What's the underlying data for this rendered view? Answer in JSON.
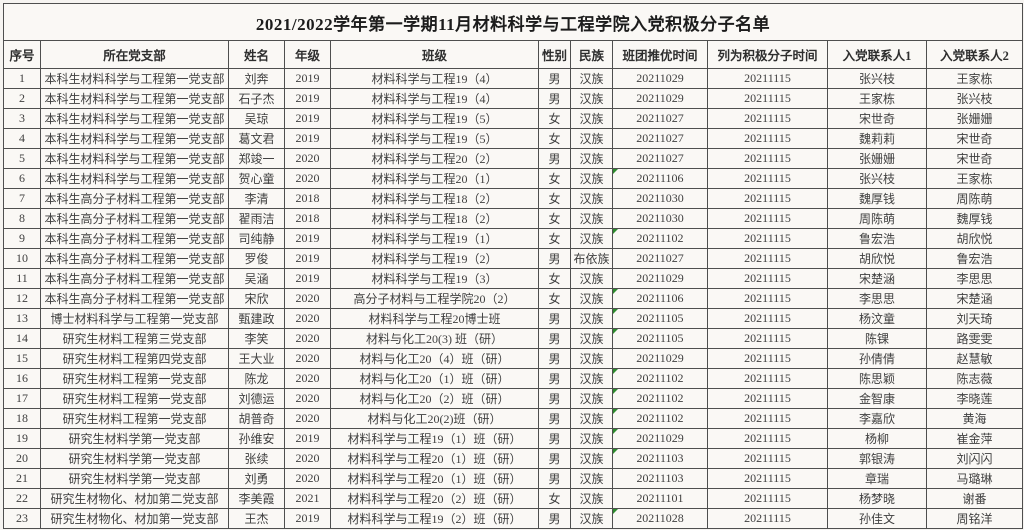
{
  "title": "2021/2022学年第一学期11月材料科学与工程学院入党积极分子名单",
  "columns": [
    "序号",
    "所在党支部",
    "姓名",
    "年级",
    "班级",
    "性别",
    "民族",
    "班团推优时间",
    "列为积极分子时间",
    "入党联系人1",
    "入党联系人2"
  ],
  "colors": {
    "flag_triangle": "#2e8b2e",
    "grid_line": "#4f4f4f",
    "paper": "#faf8f5"
  },
  "rows": [
    {
      "no": "1",
      "branch": "本科生材料科学与工程第一党支部",
      "name": "刘奔",
      "grade": "2019",
      "class": "材料科学与工程19（4）",
      "gender": "男",
      "ethnicity": "汉族",
      "rec_time": "20211029",
      "listed_time": "20211115",
      "contact1": "张兴枝",
      "contact2": "王家栋",
      "flag": false
    },
    {
      "no": "2",
      "branch": "本科生材料科学与工程第一党支部",
      "name": "石子杰",
      "grade": "2019",
      "class": "材料科学与工程19（4）",
      "gender": "男",
      "ethnicity": "汉族",
      "rec_time": "20211029",
      "listed_time": "20211115",
      "contact1": "王家栋",
      "contact2": "张兴枝",
      "flag": false
    },
    {
      "no": "3",
      "branch": "本科生材料科学与工程第一党支部",
      "name": "吴琼",
      "grade": "2019",
      "class": "材料科学与工程19（5）",
      "gender": "女",
      "ethnicity": "汉族",
      "rec_time": "20211027",
      "listed_time": "20211115",
      "contact1": "宋世奇",
      "contact2": "张姗姗",
      "flag": false
    },
    {
      "no": "4",
      "branch": "本科生材料科学与工程第一党支部",
      "name": "葛文君",
      "grade": "2019",
      "class": "材料科学与工程19（5）",
      "gender": "女",
      "ethnicity": "汉族",
      "rec_time": "20211027",
      "listed_time": "20211115",
      "contact1": "魏莉莉",
      "contact2": "宋世奇",
      "flag": false
    },
    {
      "no": "5",
      "branch": "本科生材料科学与工程第一党支部",
      "name": "郑竣一",
      "grade": "2020",
      "class": "材料科学与工程20（2）",
      "gender": "男",
      "ethnicity": "汉族",
      "rec_time": "20211027",
      "listed_time": "20211115",
      "contact1": "张姗姗",
      "contact2": "宋世奇",
      "flag": false
    },
    {
      "no": "6",
      "branch": "本科生材料科学与工程第一党支部",
      "name": "贺心童",
      "grade": "2020",
      "class": "材料科学与工程20（1）",
      "gender": "女",
      "ethnicity": "汉族",
      "rec_time": "20211106",
      "listed_time": "20211115",
      "contact1": "张兴枝",
      "contact2": "王家栋",
      "flag": true
    },
    {
      "no": "7",
      "branch": "本科生高分子材料工程第一党支部",
      "name": "李清",
      "grade": "2018",
      "class": "材料科学与工程18（2）",
      "gender": "女",
      "ethnicity": "汉族",
      "rec_time": "20211030",
      "listed_time": "20211115",
      "contact1": "魏厚钱",
      "contact2": "周陈萌",
      "flag": false
    },
    {
      "no": "8",
      "branch": "本科生高分子材料工程第一党支部",
      "name": "翟雨洁",
      "grade": "2018",
      "class": "材料科学与工程18（2）",
      "gender": "女",
      "ethnicity": "汉族",
      "rec_time": "20211030",
      "listed_time": "20211115",
      "contact1": "周陈萌",
      "contact2": "魏厚钱",
      "flag": false
    },
    {
      "no": "9",
      "branch": "本科生高分子材料工程第一党支部",
      "name": "司纯静",
      "grade": "2019",
      "class": "材料科学与工程19（1）",
      "gender": "女",
      "ethnicity": "汉族",
      "rec_time": "20211102",
      "listed_time": "20211115",
      "contact1": "鲁宏浩",
      "contact2": "胡欣悦",
      "flag": true
    },
    {
      "no": "10",
      "branch": "本科生高分子材料工程第一党支部",
      "name": "罗俊",
      "grade": "2019",
      "class": "材料科学与工程19（2）",
      "gender": "男",
      "ethnicity": "布依族",
      "rec_time": "20211027",
      "listed_time": "20211115",
      "contact1": "胡欣悦",
      "contact2": "鲁宏浩",
      "flag": false
    },
    {
      "no": "11",
      "branch": "本科生高分子材料工程第一党支部",
      "name": "吴涵",
      "grade": "2019",
      "class": "材料科学与工程19（3）",
      "gender": "女",
      "ethnicity": "汉族",
      "rec_time": "20211029",
      "listed_time": "20211115",
      "contact1": "宋楚涵",
      "contact2": "李思思",
      "flag": false
    },
    {
      "no": "12",
      "branch": "本科生高分子材料工程第一党支部",
      "name": "宋欣",
      "grade": "2020",
      "class": "高分子材料与工程学院20（2）",
      "gender": "女",
      "ethnicity": "汉族",
      "rec_time": "20211106",
      "listed_time": "20211115",
      "contact1": "李思思",
      "contact2": "宋楚涵",
      "flag": true
    },
    {
      "no": "13",
      "branch": "博士材料科学与工程第一党支部",
      "name": "甄建政",
      "grade": "2020",
      "class": "材料科学与工程20博士班",
      "gender": "男",
      "ethnicity": "汉族",
      "rec_time": "20211105",
      "listed_time": "20211115",
      "contact1": "杨汶童",
      "contact2": "刘天琦",
      "flag": true
    },
    {
      "no": "14",
      "branch": "研究生材料工程第三党支部",
      "name": "李笑",
      "grade": "2020",
      "class": "材料与化工20(3) 班（研）",
      "gender": "男",
      "ethnicity": "汉族",
      "rec_time": "20211105",
      "listed_time": "20211115",
      "contact1": "陈锞",
      "contact2": "路雯雯",
      "flag": true
    },
    {
      "no": "15",
      "branch": "研究生材料工程第四党支部",
      "name": "王大业",
      "grade": "2020",
      "class": "材料与化工20（4）班（研）",
      "gender": "男",
      "ethnicity": "汉族",
      "rec_time": "20211029",
      "listed_time": "20211115",
      "contact1": "孙倩倩",
      "contact2": "赵慧敏",
      "flag": false
    },
    {
      "no": "16",
      "branch": "研究生材料工程第一党支部",
      "name": "陈龙",
      "grade": "2020",
      "class": "材料与化工20（1）班（研）",
      "gender": "男",
      "ethnicity": "汉族",
      "rec_time": "20211102",
      "listed_time": "20211115",
      "contact1": "陈思颖",
      "contact2": "陈志薇",
      "flag": true
    },
    {
      "no": "17",
      "branch": "研究生材料工程第一党支部",
      "name": "刘德运",
      "grade": "2020",
      "class": "材料与化工20（2）班（研）",
      "gender": "男",
      "ethnicity": "汉族",
      "rec_time": "20211102",
      "listed_time": "20211115",
      "contact1": "金智康",
      "contact2": "李晓莲",
      "flag": true
    },
    {
      "no": "18",
      "branch": "研究生材料工程第一党支部",
      "name": "胡普奇",
      "grade": "2020",
      "class": "材料与化工20(2)班（研）",
      "gender": "男",
      "ethnicity": "汉族",
      "rec_time": "20211102",
      "listed_time": "20211115",
      "contact1": "李嘉欣",
      "contact2": "黄海",
      "flag": true
    },
    {
      "no": "19",
      "branch": "研究生材料学第一党支部",
      "name": "孙维安",
      "grade": "2019",
      "class": "材料科学与工程19（1）班（研）",
      "gender": "男",
      "ethnicity": "汉族",
      "rec_time": "20211029",
      "listed_time": "20211115",
      "contact1": "杨柳",
      "contact2": "崔金萍",
      "flag": true
    },
    {
      "no": "20",
      "branch": "研究生材料学第一党支部",
      "name": "张续",
      "grade": "2020",
      "class": "材料科学与工程20（1）班（研）",
      "gender": "男",
      "ethnicity": "汉族",
      "rec_time": "20211103",
      "listed_time": "20211115",
      "contact1": "郭银涛",
      "contact2": "刘闪闪",
      "flag": true
    },
    {
      "no": "21",
      "branch": "研究生材料学第一党支部",
      "name": "刘勇",
      "grade": "2020",
      "class": "材料科学与工程20（1）班（研）",
      "gender": "男",
      "ethnicity": "汉族",
      "rec_time": "20211103",
      "listed_time": "20211115",
      "contact1": "章瑞",
      "contact2": "马璐琳",
      "flag": false
    },
    {
      "no": "22",
      "branch": "研究生材物化、材加第二党支部",
      "name": "李美霞",
      "grade": "2021",
      "class": "材料科学与工程20（2）班（研）",
      "gender": "女",
      "ethnicity": "汉族",
      "rec_time": "20211101",
      "listed_time": "20211115",
      "contact1": "杨梦晓",
      "contact2": "谢番",
      "flag": false
    },
    {
      "no": "23",
      "branch": "研究生材物化、材加第一党支部",
      "name": "王杰",
      "grade": "2019",
      "class": "材料科学与工程19（2）班（研）",
      "gender": "男",
      "ethnicity": "汉族",
      "rec_time": "20211028",
      "listed_time": "20211115",
      "contact1": "孙佳文",
      "contact2": "周铭洋",
      "flag": true
    }
  ]
}
